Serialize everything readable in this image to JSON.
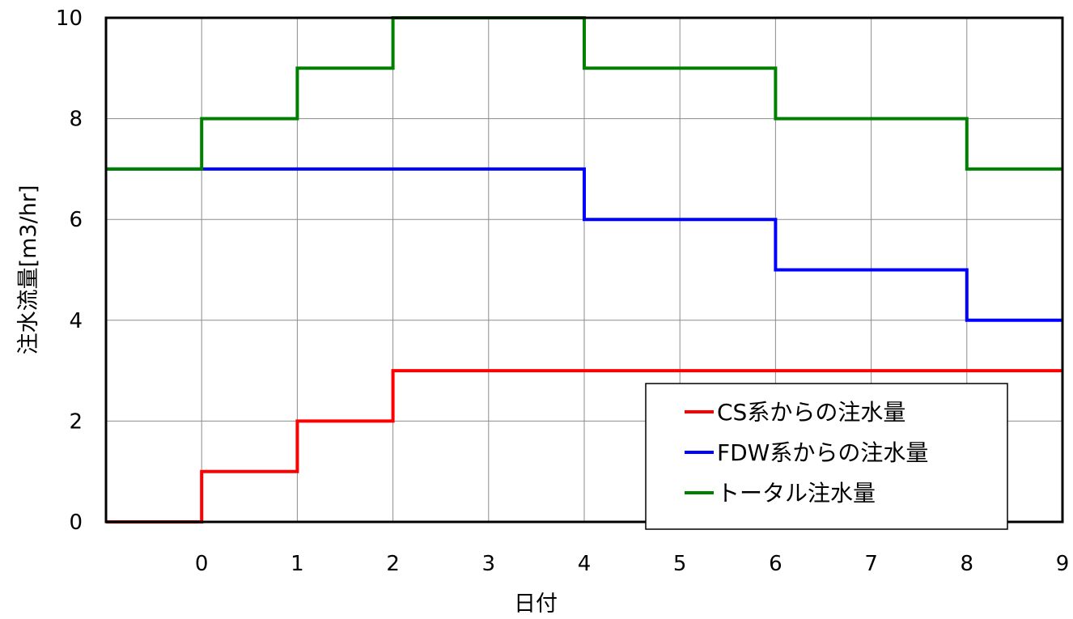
{
  "chart_data": {
    "type": "line",
    "step": true,
    "xlabel": "日付",
    "ylabel": "注水流量[m3/hr]",
    "x_tick_labels": [
      "",
      "0",
      "1",
      "2",
      "3",
      "4",
      "5",
      "6",
      "7",
      "8",
      "9"
    ],
    "y_ticks": [
      0,
      2,
      4,
      6,
      8,
      10
    ],
    "ylim": [
      0,
      10
    ],
    "grid": true,
    "legend_position": "bottom-right",
    "series": [
      {
        "name": "CS系からの注水量",
        "color": "#ff0000",
        "values": [
          0,
          1,
          2,
          3,
          3,
          3,
          3,
          3,
          3,
          3
        ]
      },
      {
        "name": "FDW系からの注水量",
        "color": "#0000ff",
        "values": [
          7,
          7,
          7,
          7,
          7,
          6,
          6,
          5,
          5,
          4
        ]
      },
      {
        "name": "トータル注水量",
        "color": "#008000",
        "values": [
          7,
          8,
          9,
          10,
          10,
          9,
          9,
          8,
          8,
          7
        ]
      }
    ]
  }
}
